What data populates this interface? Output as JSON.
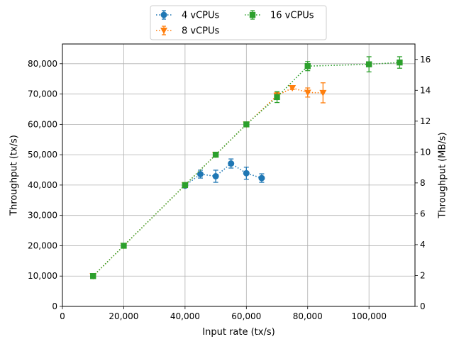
{
  "chart_data": {
    "type": "line",
    "xlabel": "Input rate (tx/s)",
    "ylabel": "Throughput (tx/s)",
    "y2label": "Throughput (MB/s)",
    "xlim": [
      0,
      115000
    ],
    "ylim": [
      0,
      86500
    ],
    "y2lim": [
      0,
      17.0
    ],
    "x_ticks": [
      0,
      20000,
      40000,
      60000,
      80000,
      100000
    ],
    "x_tick_labels": [
      "0",
      "20,000",
      "40,000",
      "60,000",
      "80,000",
      "100,000"
    ],
    "y_ticks": [
      0,
      10000,
      20000,
      30000,
      40000,
      50000,
      60000,
      70000,
      80000
    ],
    "y_tick_labels": [
      "0",
      "10,000",
      "20,000",
      "30,000",
      "40,000",
      "50,000",
      "60,000",
      "70,000",
      "80,000"
    ],
    "y2_ticks": [
      0,
      2,
      4,
      6,
      8,
      10,
      12,
      14,
      16
    ],
    "y2_tick_labels": [
      "0",
      "2",
      "4",
      "6",
      "8",
      "10",
      "12",
      "14",
      "16"
    ],
    "grid": true,
    "legend_position": "top-center",
    "series": [
      {
        "name": "4 vCPUs",
        "color": "#1f77b4",
        "marker": "circle",
        "x": [
          40000,
          45000,
          50000,
          55000,
          60000,
          65000
        ],
        "y": [
          39800,
          43600,
          42900,
          47100,
          43900,
          42300
        ],
        "err": [
          500,
          1300,
          2000,
          1500,
          2000,
          1400
        ]
      },
      {
        "name": "8 vCPUs",
        "color": "#ff7f0e",
        "marker": "triangle-down",
        "x": [
          10000,
          20000,
          40000,
          50000,
          60000,
          70000,
          75000,
          80000,
          85000
        ],
        "y": [
          10000,
          20000,
          40000,
          50000,
          60000,
          69500,
          72000,
          70500,
          70400
        ],
        "err": [
          200,
          200,
          300,
          300,
          300,
          1000,
          500,
          1500,
          3300
        ]
      },
      {
        "name": "16 vCPUs",
        "color": "#2ca02c",
        "marker": "square",
        "x": [
          10000,
          20000,
          40000,
          50000,
          60000,
          70000,
          80000,
          100000,
          110000
        ],
        "y": [
          10000,
          20000,
          40000,
          50000,
          60000,
          69000,
          79200,
          79800,
          80400
        ],
        "err": [
          200,
          200,
          300,
          300,
          300,
          1800,
          1500,
          2500,
          1900
        ]
      }
    ]
  }
}
